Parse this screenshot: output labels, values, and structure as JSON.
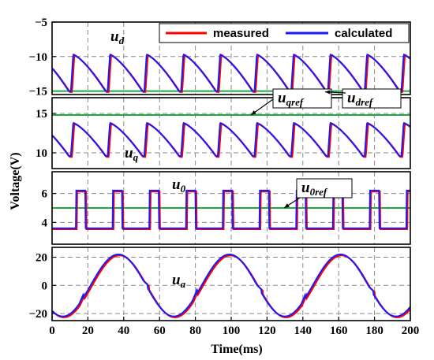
{
  "chart_data": {
    "type": "line",
    "x_axis": {
      "label": "Time(ms)",
      "range": [
        0,
        200
      ],
      "ticks": [
        "0",
        "20",
        "40",
        "60",
        "80",
        "100",
        "120",
        "140",
        "160",
        "180",
        "200"
      ]
    },
    "y_axis_label": "Voltage(V)",
    "legend": {
      "placement": "top-right",
      "entries": [
        {
          "name": "measured",
          "color": "#ff0000"
        },
        {
          "name": "calculated",
          "color": "#1a1aff"
        }
      ]
    },
    "reference_color": "#1bab3c",
    "panels": [
      {
        "id": "ud",
        "label_main": "u",
        "label_sub": "d",
        "ylim": [
          -15.5,
          -5
        ],
        "yticks": [
          -5,
          -10,
          -15
        ],
        "ytick_labels": [
          "−5",
          "−10",
          "−15"
        ],
        "reference": {
          "value": -15,
          "label_main": "u",
          "label_sub": "dref"
        },
        "waveform": {
          "kind": "sawtooth",
          "period_ms": 20.5,
          "peak": -9.7,
          "trough": -15
        }
      },
      {
        "id": "uq",
        "label_main": "u",
        "label_sub": "q",
        "ylim": [
          8,
          17
        ],
        "yticks": [
          10,
          15
        ],
        "ytick_labels": [
          "10",
          "15"
        ],
        "reference": {
          "value": 14.8,
          "label_main": "u",
          "label_sub": "qref"
        },
        "waveform": {
          "kind": "sawtooth",
          "period_ms": 20.5,
          "peak": 13.8,
          "trough": 9.6
        }
      },
      {
        "id": "u0",
        "label_main": "u",
        "label_sub": "0",
        "ylim": [
          2.5,
          7.5
        ],
        "yticks": [
          4,
          6
        ],
        "ytick_labels": [
          "4",
          "6"
        ],
        "reference": {
          "value": 5,
          "label_main": "u",
          "label_sub": "0ref"
        },
        "waveform": {
          "kind": "pulse",
          "period_ms": 20.5,
          "high": 6.2,
          "low": 3.6
        }
      },
      {
        "id": "ua",
        "label_main": "u",
        "label_sub": "a",
        "ylim": [
          -25,
          27
        ],
        "yticks": [
          -20,
          0,
          20
        ],
        "ytick_labels": [
          "−20",
          "0",
          "20"
        ],
        "waveform": {
          "kind": "sine",
          "period_ms": 62,
          "amplitude": 22,
          "peak_ms": 37
        }
      }
    ]
  }
}
